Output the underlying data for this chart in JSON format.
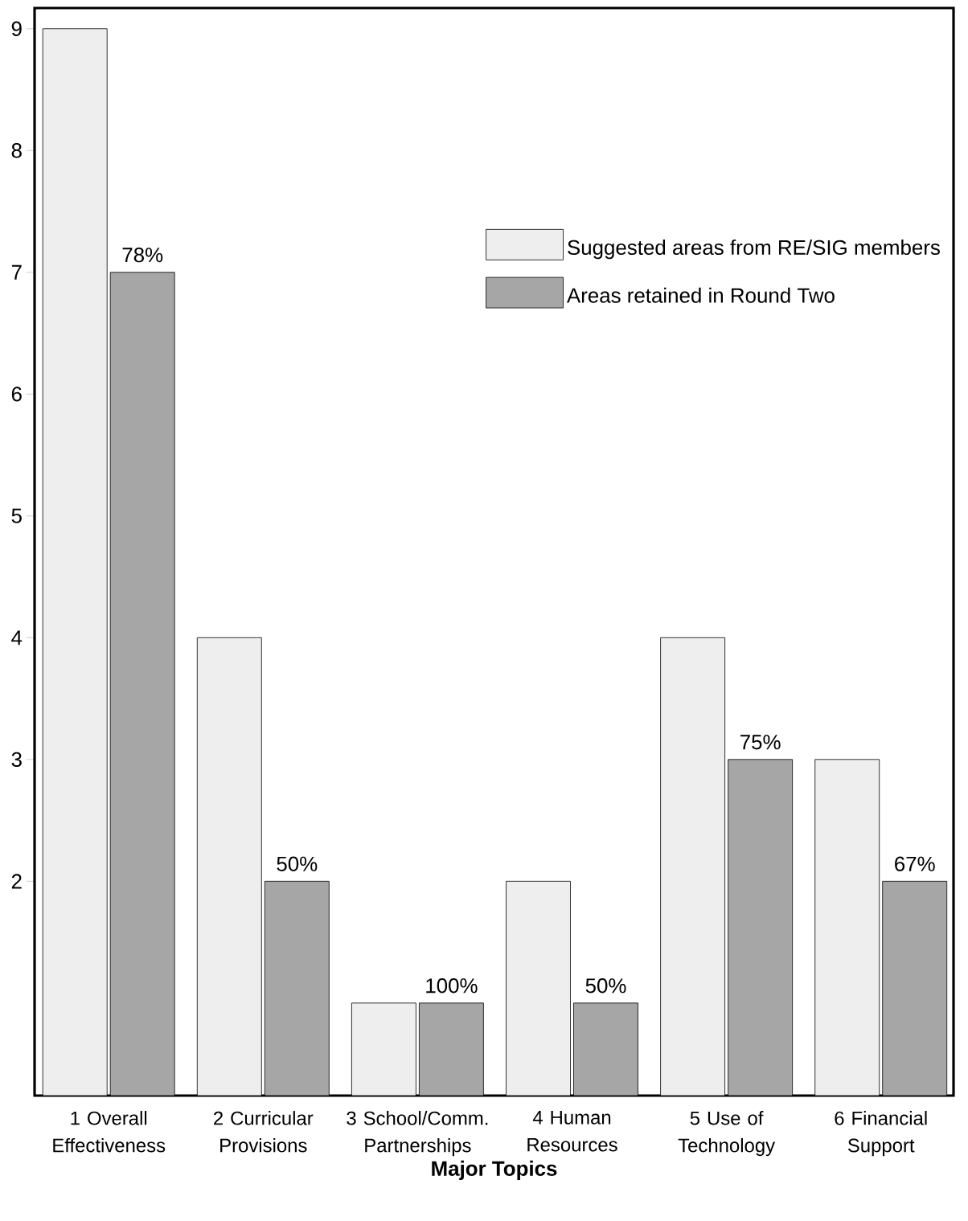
{
  "chart_data": {
    "type": "bar",
    "xlabel": "Major Topics",
    "categories": [
      "1 Overall Effectiveness",
      "2 Curricular Provisions",
      "3 School/Comm. Partnerships",
      "4 Human Resources",
      "5 Use of Technology",
      "6 Financial Support"
    ],
    "series": [
      {
        "name": "Suggested areas from RE/SIG members",
        "color": "#eeeeee",
        "values": [
          9,
          4,
          1,
          2,
          4,
          3
        ]
      },
      {
        "name": "Areas retained in Round Two",
        "color": "#a6a6a6",
        "values": [
          7,
          2,
          1,
          1,
          3,
          2
        ]
      }
    ],
    "annotations": [
      {
        "text": "78%",
        "x": "1 Overall Effectiveness",
        "y": 7
      },
      {
        "text": "50%",
        "x": "2 Curricular Provisions",
        "y": 2
      },
      {
        "text": "100%",
        "x": "3 School/Comm. Partnerships",
        "y": 1
      },
      {
        "text": "50%",
        "x": "4 Human Resources",
        "y": 1
      },
      {
        "text": "75%",
        "x": "5 Use of Technology",
        "y": 3
      },
      {
        "text": "67%",
        "x": "6 Financial Support",
        "y": 2
      }
    ],
    "ylim": [
      0.24,
      9.17
    ],
    "yticks": [
      2,
      3,
      4,
      5,
      6,
      7,
      8,
      9
    ],
    "legend": "top right",
    "grid": false
  }
}
